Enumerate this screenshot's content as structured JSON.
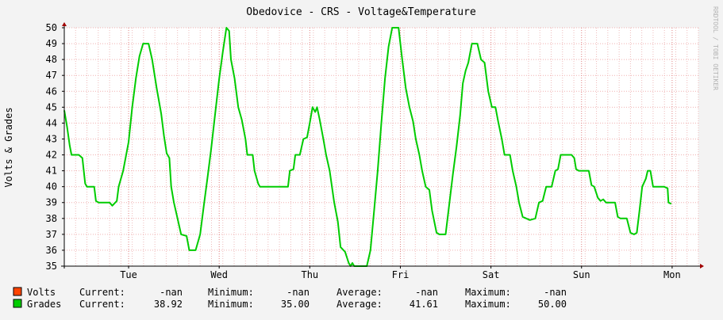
{
  "chart_data": {
    "type": "line",
    "title": "Obedovice - CRS - Voltage&Temperature",
    "ylabel": "Volts & Grades",
    "watermark": "RRDTOOL / TOBI OETIKER",
    "ylim": [
      35,
      50
    ],
    "yticks": [
      35,
      36,
      37,
      38,
      39,
      40,
      41,
      42,
      43,
      44,
      45,
      46,
      47,
      48,
      49,
      50
    ],
    "x_range_days": [
      0,
      7.0
    ],
    "x_ticks": [
      {
        "label": "Tue",
        "day": 0.71
      },
      {
        "label": "Wed",
        "day": 1.71
      },
      {
        "label": "Thu",
        "day": 2.71
      },
      {
        "label": "Fri",
        "day": 3.71
      },
      {
        "label": "Sat",
        "day": 4.71
      },
      {
        "label": "Sun",
        "day": 5.71
      },
      {
        "label": "Mon",
        "day": 6.71
      }
    ],
    "grid": true,
    "legend_position": "bottom-left",
    "series": [
      {
        "name": "Volts",
        "color": "#ff4400",
        "current": "-nan",
        "minimum": "-nan",
        "average": "-nan",
        "maximum": "-nan",
        "points": []
      },
      {
        "name": "Grades",
        "color": "#00cc00",
        "current": "38.92",
        "minimum": "35.00",
        "average": "41.61",
        "maximum": "50.00",
        "points": [
          [
            0.0,
            44.8
          ],
          [
            0.03,
            43.8
          ],
          [
            0.06,
            42.6
          ],
          [
            0.08,
            42.0
          ],
          [
            0.16,
            42.0
          ],
          [
            0.2,
            41.8
          ],
          [
            0.23,
            40.2
          ],
          [
            0.25,
            40.0
          ],
          [
            0.33,
            40.0
          ],
          [
            0.35,
            39.1
          ],
          [
            0.38,
            39.0
          ],
          [
            0.5,
            39.0
          ],
          [
            0.53,
            38.8
          ],
          [
            0.58,
            39.1
          ],
          [
            0.6,
            40.0
          ],
          [
            0.65,
            41.0
          ],
          [
            0.71,
            42.8
          ],
          [
            0.75,
            45.0
          ],
          [
            0.79,
            46.8
          ],
          [
            0.83,
            48.2
          ],
          [
            0.87,
            49.0
          ],
          [
            0.93,
            49.0
          ],
          [
            0.97,
            48.0
          ],
          [
            1.02,
            46.2
          ],
          [
            1.07,
            44.6
          ],
          [
            1.1,
            43.2
          ],
          [
            1.13,
            42.1
          ],
          [
            1.16,
            41.8
          ],
          [
            1.18,
            40.0
          ],
          [
            1.21,
            39.0
          ],
          [
            1.25,
            38.0
          ],
          [
            1.29,
            37.0
          ],
          [
            1.35,
            36.9
          ],
          [
            1.38,
            36.0
          ],
          [
            1.45,
            36.0
          ],
          [
            1.5,
            37.0
          ],
          [
            1.54,
            38.8
          ],
          [
            1.58,
            40.5
          ],
          [
            1.62,
            42.3
          ],
          [
            1.67,
            44.8
          ],
          [
            1.71,
            46.8
          ],
          [
            1.75,
            48.5
          ],
          [
            1.79,
            50.0
          ],
          [
            1.82,
            49.8
          ],
          [
            1.84,
            48.0
          ],
          [
            1.88,
            46.8
          ],
          [
            1.92,
            45.0
          ],
          [
            1.96,
            44.2
          ],
          [
            2.0,
            43.0
          ],
          [
            2.02,
            42.0
          ],
          [
            2.08,
            42.0
          ],
          [
            2.1,
            41.0
          ],
          [
            2.14,
            40.2
          ],
          [
            2.16,
            40.0
          ],
          [
            2.47,
            40.0
          ],
          [
            2.49,
            41.0
          ],
          [
            2.53,
            41.1
          ],
          [
            2.55,
            42.0
          ],
          [
            2.6,
            42.0
          ],
          [
            2.64,
            43.0
          ],
          [
            2.68,
            43.1
          ],
          [
            2.71,
            44.0
          ],
          [
            2.74,
            45.0
          ],
          [
            2.77,
            44.7
          ],
          [
            2.79,
            45.0
          ],
          [
            2.82,
            44.2
          ],
          [
            2.86,
            43.0
          ],
          [
            2.89,
            42.0
          ],
          [
            2.93,
            41.0
          ],
          [
            2.98,
            39.0
          ],
          [
            3.02,
            37.8
          ],
          [
            3.05,
            36.2
          ],
          [
            3.1,
            35.9
          ],
          [
            3.14,
            35.2
          ],
          [
            3.16,
            35.0
          ],
          [
            3.18,
            35.2
          ],
          [
            3.2,
            35.0
          ],
          [
            3.34,
            35.0
          ],
          [
            3.38,
            36.0
          ],
          [
            3.42,
            38.5
          ],
          [
            3.46,
            41.0
          ],
          [
            3.5,
            44.0
          ],
          [
            3.54,
            46.8
          ],
          [
            3.58,
            48.8
          ],
          [
            3.62,
            50.0
          ],
          [
            3.69,
            50.0
          ],
          [
            3.73,
            48.0
          ],
          [
            3.77,
            46.2
          ],
          [
            3.81,
            45.0
          ],
          [
            3.85,
            44.1
          ],
          [
            3.88,
            43.0
          ],
          [
            3.92,
            42.0
          ],
          [
            3.95,
            41.0
          ],
          [
            3.99,
            40.0
          ],
          [
            4.03,
            39.8
          ],
          [
            4.06,
            38.5
          ],
          [
            4.11,
            37.1
          ],
          [
            4.14,
            37.0
          ],
          [
            4.21,
            37.0
          ],
          [
            4.25,
            38.9
          ],
          [
            4.29,
            40.8
          ],
          [
            4.33,
            42.5
          ],
          [
            4.37,
            44.5
          ],
          [
            4.4,
            46.5
          ],
          [
            4.43,
            47.3
          ],
          [
            4.46,
            47.8
          ],
          [
            4.5,
            49.0
          ],
          [
            4.56,
            49.0
          ],
          [
            4.6,
            48.0
          ],
          [
            4.64,
            47.8
          ],
          [
            4.68,
            46.0
          ],
          [
            4.72,
            45.0
          ],
          [
            4.76,
            45.0
          ],
          [
            4.79,
            44.1
          ],
          [
            4.83,
            43.0
          ],
          [
            4.86,
            42.0
          ],
          [
            4.92,
            42.0
          ],
          [
            4.95,
            41.0
          ],
          [
            4.99,
            40.0
          ],
          [
            5.02,
            39.0
          ],
          [
            5.06,
            38.1
          ],
          [
            5.1,
            38.0
          ],
          [
            5.14,
            37.9
          ],
          [
            5.2,
            38.0
          ],
          [
            5.24,
            39.0
          ],
          [
            5.28,
            39.1
          ],
          [
            5.32,
            40.0
          ],
          [
            5.38,
            40.0
          ],
          [
            5.42,
            41.0
          ],
          [
            5.45,
            41.1
          ],
          [
            5.48,
            42.0
          ],
          [
            5.6,
            42.0
          ],
          [
            5.63,
            41.8
          ],
          [
            5.65,
            41.1
          ],
          [
            5.68,
            41.0
          ],
          [
            5.79,
            41.0
          ],
          [
            5.82,
            40.1
          ],
          [
            5.85,
            40.0
          ],
          [
            5.89,
            39.3
          ],
          [
            5.92,
            39.1
          ],
          [
            5.95,
            39.2
          ],
          [
            5.98,
            39.0
          ],
          [
            6.08,
            39.0
          ],
          [
            6.11,
            38.1
          ],
          [
            6.14,
            38.0
          ],
          [
            6.21,
            38.0
          ],
          [
            6.25,
            37.1
          ],
          [
            6.29,
            37.0
          ],
          [
            6.32,
            37.1
          ],
          [
            6.35,
            38.5
          ],
          [
            6.38,
            40.0
          ],
          [
            6.42,
            40.5
          ],
          [
            6.44,
            41.0
          ],
          [
            6.47,
            41.0
          ],
          [
            6.5,
            40.0
          ],
          [
            6.62,
            40.0
          ],
          [
            6.66,
            39.9
          ],
          [
            6.67,
            39.0
          ],
          [
            6.7,
            38.92
          ]
        ]
      }
    ]
  }
}
